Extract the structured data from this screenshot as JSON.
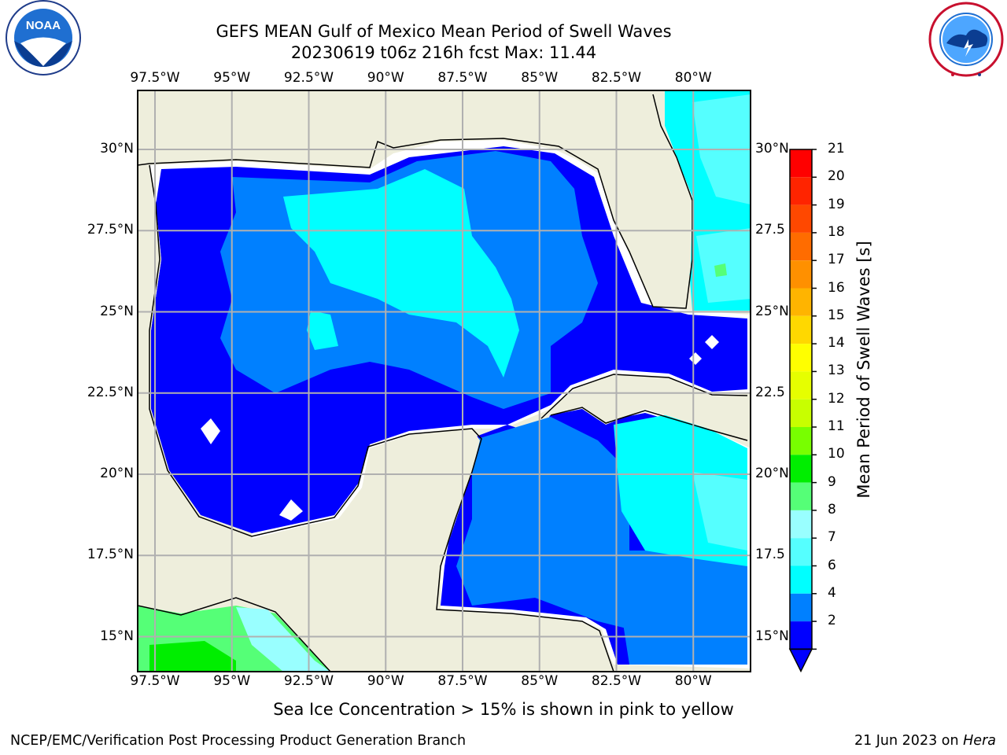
{
  "header": {
    "title_line1": "GEFS MEAN Gulf of Mexico Mean Period of Swell Waves",
    "title_line2": "20230619 t06z 216h fcst   Max: 11.44"
  },
  "logos": {
    "noaa_text": "NOAA",
    "noaa_ring_text": "NATIONAL OCEANIC AND ATMOSPHERIC ADMINISTRATION · U.S. DEPARTMENT OF COMMERCE",
    "nws_ring_text": "NATIONAL WEATHER SERVICE"
  },
  "map": {
    "lon_labels": [
      "97.5°W",
      "95°W",
      "92.5°W",
      "90°W",
      "87.5°W",
      "85°W",
      "82.5°W",
      "80°W"
    ],
    "lat_labels_left": [
      "30°N",
      "27.5°N",
      "25°N",
      "22.5°N",
      "20°N",
      "17.5°N",
      "15°N"
    ],
    "lat_labels_right": [
      "30°N",
      "27.5",
      "25°N",
      "22.5",
      "20°N",
      "17.5",
      "15°N"
    ],
    "colors": {
      "land": "#eeeedc",
      "grid": "#b0b0b0",
      "coast": "#000000"
    }
  },
  "colorbar": {
    "title": "Mean Period of Swell Waves [s]",
    "ticks": [
      "21",
      "20",
      "19",
      "18",
      "17",
      "16",
      "15",
      "14",
      "13",
      "12",
      "11",
      "10",
      "9",
      "8",
      "7",
      "6",
      "4",
      "2"
    ],
    "colors": [
      "#ff0000",
      "#ff2400",
      "#ff4800",
      "#ff6c00",
      "#ff9000",
      "#ffb400",
      "#ffd800",
      "#ffff00",
      "#e6ff00",
      "#c8ff00",
      "#78ff00",
      "#00ee00",
      "#55ff77",
      "#99ffff",
      "#55ffff",
      "#00ffff",
      "#0080ff",
      "#0000ff"
    ]
  },
  "caption": "Sea Ice Concentration > 15% is shown in pink to yellow",
  "footer": {
    "left": "NCEP/EMC/Verification Post Processing Product Generation Branch",
    "right_prefix": "21 Jun 2023 on ",
    "right_host": "Hera"
  }
}
